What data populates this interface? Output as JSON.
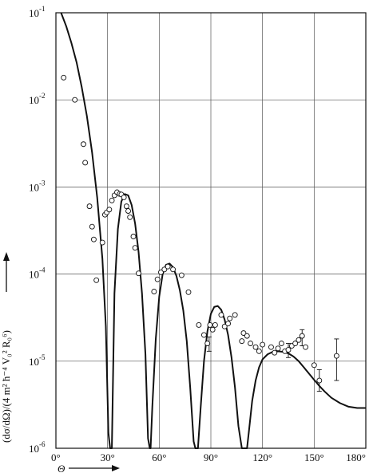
{
  "chart_data": {
    "type": "scatter",
    "y_scale": "log",
    "xlim": [
      0,
      180
    ],
    "ylim": [
      1e-06,
      0.1
    ],
    "grid": true,
    "x_ticks": [
      {
        "value": 0,
        "label": "0°"
      },
      {
        "value": 30,
        "label": "30°"
      },
      {
        "value": 60,
        "label": "60°"
      },
      {
        "value": 90,
        "label": "90°"
      },
      {
        "value": 120,
        "label": "120°"
      },
      {
        "value": 150,
        "label": "150°"
      },
      {
        "value": 180,
        "label": "180°"
      }
    ],
    "y_ticks": [
      {
        "value": 1e-06,
        "base": "10",
        "exp": "-6"
      },
      {
        "value": 1e-05,
        "base": "10",
        "exp": "-5"
      },
      {
        "value": 0.0001,
        "base": "10",
        "exp": "-4"
      },
      {
        "value": 0.001,
        "base": "10",
        "exp": "-3"
      },
      {
        "value": 0.01,
        "base": "10",
        "exp": "-2"
      },
      {
        "value": 0.1,
        "base": "10",
        "exp": "-1"
      }
    ],
    "xlabel": "Θ",
    "ylabel": "(dσ/dΩ)/(4 m² ħ⁻⁴ V₀² R₀⁶)",
    "curve": {
      "x": [
        3,
        6,
        9,
        12,
        15,
        18,
        21,
        24,
        27,
        29,
        30.5,
        31.5,
        32,
        32.5,
        33,
        34,
        36,
        38,
        40,
        42,
        44,
        46,
        48,
        50,
        52,
        53.5,
        54.5,
        55,
        56,
        58,
        60,
        62,
        64,
        66,
        68,
        70,
        72,
        74,
        76,
        78,
        80,
        81,
        81.6,
        82.5,
        84,
        86,
        88,
        90,
        92,
        94,
        96,
        98,
        100,
        102,
        104,
        106,
        108,
        109,
        110,
        111,
        112,
        114,
        116,
        118,
        120,
        123,
        126,
        129,
        132,
        135,
        138,
        141,
        144,
        147,
        150,
        153,
        156,
        160,
        165,
        170,
        175,
        178,
        180
      ],
      "y": [
        0.1,
        0.07,
        0.045,
        0.027,
        0.014,
        0.0065,
        0.0025,
        0.00075,
        0.00015,
        2.5e-05,
        1.5e-06,
        1e-06,
        1e-06,
        1e-06,
        4e-06,
        6e-05,
        0.00033,
        0.00068,
        0.00083,
        0.0008,
        0.00062,
        0.00038,
        0.00018,
        6e-05,
        1.2e-05,
        1.3e-06,
        1e-06,
        1e-06,
        3e-06,
        1.8e-05,
        5.5e-05,
        0.0001,
        0.000128,
        0.000132,
        0.00012,
        9.5e-05,
        6.5e-05,
        3.8e-05,
        1.7e-05,
        5e-06,
        1.2e-06,
        1e-06,
        1e-06,
        1e-06,
        2.8e-06,
        1e-05,
        2.2e-05,
        3.5e-05,
        4.2e-05,
        4.3e-05,
        3.9e-05,
        3e-05,
        2e-05,
        1.1e-05,
        5e-06,
        1.8e-06,
        1e-06,
        1e-06,
        1e-06,
        1e-06,
        1.5e-06,
        3.5e-06,
        6e-06,
        8.5e-06,
        1.05e-05,
        1.2e-05,
        1.28e-05,
        1.3e-05,
        1.28e-05,
        1.23e-05,
        1.13e-05,
        1e-05,
        8.5e-06,
        7.2e-06,
        6.1e-06,
        5.2e-06,
        4.5e-06,
        3.8e-06,
        3.3e-06,
        3e-06,
        2.9e-06,
        2.9e-06,
        2.9e-06
      ]
    },
    "points": [
      {
        "x": 4.5,
        "y": 0.018
      },
      {
        "x": 11,
        "y": 0.01
      },
      {
        "x": 16,
        "y": 0.0031
      },
      {
        "x": 17,
        "y": 0.0019
      },
      {
        "x": 19.5,
        "y": 0.0006
      },
      {
        "x": 21,
        "y": 0.00035
      },
      {
        "x": 22,
        "y": 0.00025
      },
      {
        "x": 23.5,
        "y": 8.5e-05
      },
      {
        "x": 27,
        "y": 0.00023
      },
      {
        "x": 28.5,
        "y": 0.00048
      },
      {
        "x": 29.5,
        "y": 0.00051
      },
      {
        "x": 31,
        "y": 0.00055
      },
      {
        "x": 32.5,
        "y": 0.0007
      },
      {
        "x": 34,
        "y": 0.0008
      },
      {
        "x": 35.5,
        "y": 0.00087
      },
      {
        "x": 37,
        "y": 0.00083
      },
      {
        "x": 38,
        "y": 0.00082
      },
      {
        "x": 39.5,
        "y": 0.00076
      },
      {
        "x": 41,
        "y": 0.0006
      },
      {
        "x": 42,
        "y": 0.00053
      },
      {
        "x": 43,
        "y": 0.00045
      },
      {
        "x": 45,
        "y": 0.00027
      },
      {
        "x": 46,
        "y": 0.0002
      },
      {
        "x": 48,
        "y": 0.000102
      },
      {
        "x": 57,
        "y": 6.3e-05
      },
      {
        "x": 59,
        "y": 8.7e-05
      },
      {
        "x": 61,
        "y": 0.000105
      },
      {
        "x": 63,
        "y": 0.000113
      },
      {
        "x": 65,
        "y": 0.000122
      },
      {
        "x": 68,
        "y": 0.000113
      },
      {
        "x": 73,
        "y": 9.7e-05
      },
      {
        "x": 77,
        "y": 6.2e-05
      },
      {
        "x": 83,
        "y": 2.6e-05
      },
      {
        "x": 86,
        "y": 2e-05
      },
      {
        "x": 88,
        "y": 1.6e-05
      },
      {
        "x": 89.5,
        "y": 2.6e-05
      },
      {
        "x": 91,
        "y": 2.3e-05
      },
      {
        "x": 92.5,
        "y": 2.6e-05
      },
      {
        "x": 96,
        "y": 3.4e-05
      },
      {
        "x": 98,
        "y": 2.5e-05
      },
      {
        "x": 100,
        "y": 2.7e-05
      },
      {
        "x": 101,
        "y": 3.1e-05
      },
      {
        "x": 104,
        "y": 3.4e-05
      },
      {
        "x": 108,
        "y": 1.7e-05
      },
      {
        "x": 109,
        "y": 2.1e-05
      },
      {
        "x": 111,
        "y": 1.95e-05
      },
      {
        "x": 113,
        "y": 1.6e-05
      },
      {
        "x": 116,
        "y": 1.45e-05
      },
      {
        "x": 118,
        "y": 1.3e-05
      },
      {
        "x": 120,
        "y": 1.55e-05
      },
      {
        "x": 125,
        "y": 1.45e-05
      },
      {
        "x": 127,
        "y": 1.25e-05
      },
      {
        "x": 129,
        "y": 1.4e-05
      },
      {
        "x": 131,
        "y": 1.6e-05
      },
      {
        "x": 133,
        "y": 1.3e-05
      },
      {
        "x": 135,
        "y": 1.35e-05
      },
      {
        "x": 137,
        "y": 1.5e-05
      },
      {
        "x": 139,
        "y": 1.6e-05
      },
      {
        "x": 141,
        "y": 1.75e-05
      },
      {
        "x": 143,
        "y": 1.95e-05
      },
      {
        "x": 145,
        "y": 1.45e-05
      },
      {
        "x": 150,
        "y": 9e-06
      },
      {
        "x": 153,
        "y": 6e-06
      },
      {
        "x": 163,
        "y": 1.15e-05
      }
    ],
    "error_bars": [
      {
        "x": 89,
        "low": 1.3e-05,
        "high": 1.9e-05
      },
      {
        "x": 135,
        "low": 1.1e-05,
        "high": 1.6e-05
      },
      {
        "x": 143,
        "low": 1.5e-05,
        "high": 2.3e-05
      },
      {
        "x": 153,
        "low": 4.5e-06,
        "high": 8e-06
      },
      {
        "x": 163,
        "low": 6e-06,
        "high": 1.8e-05
      }
    ]
  }
}
